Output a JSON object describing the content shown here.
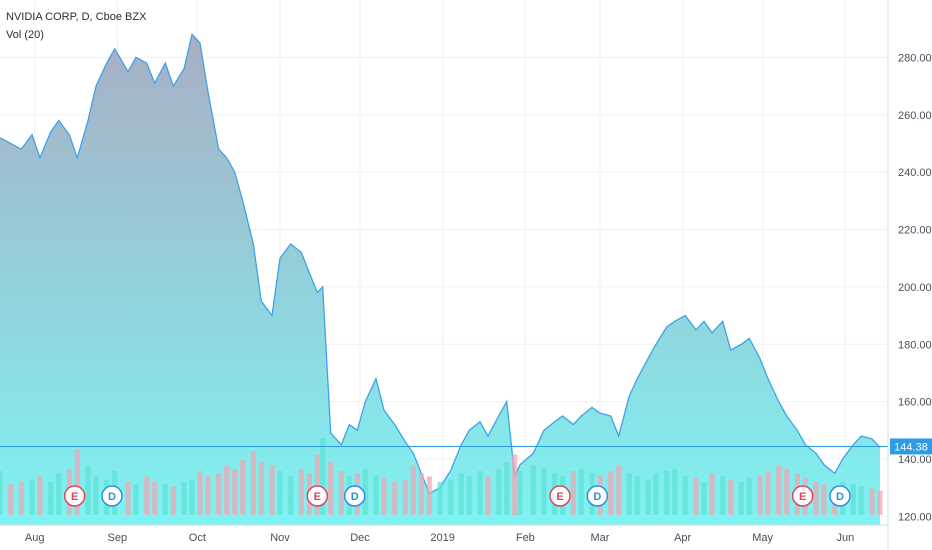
{
  "legend": {
    "symbol": "NVIDIA CORP, D, Cboe BZX",
    "indicator": "Vol (20)"
  },
  "colors": {
    "line": "#3fa2e6",
    "fill_top": "#a9aec4",
    "fill_bottom": "#7ef3f2",
    "volume_up": "#5fe1d6",
    "volume_down": "#f0a6b3",
    "grid": "#eef0f3",
    "price_line": "#2f9be6",
    "price_tag": "#2f9be6",
    "earnings": "#e0455a",
    "dividend": "#2f8fe0",
    "axis_text": "#4a4e59"
  },
  "chart_data": {
    "type": "area",
    "title": "NVIDIA CORP, D, Cboe BZX",
    "xlabel": "",
    "ylabel": "",
    "ylim": [
      117,
      300
    ],
    "x_ticks": [
      "Aug",
      "Sep",
      "Oct",
      "Nov",
      "Dec",
      "2019",
      "Feb",
      "Mar",
      "Apr",
      "May",
      "Jun"
    ],
    "y_ticks": [
      120,
      140,
      160,
      180,
      200,
      220,
      240,
      260,
      280
    ],
    "y_tick_labels": [
      "120.00",
      "140.00",
      "160.00",
      "180.00",
      "200.00",
      "220.00",
      "240.00",
      "260.00",
      "280.00"
    ],
    "last_price": 144.38,
    "last_price_label": "144.38",
    "grid": true,
    "series": [
      {
        "x": [
          "2018-07-19",
          "2018-07-23",
          "2018-07-27",
          "2018-07-31",
          "2018-08-03",
          "2018-08-07",
          "2018-08-10",
          "2018-08-14",
          "2018-08-17",
          "2018-08-21",
          "2018-08-24",
          "2018-08-28",
          "2018-08-31",
          "2018-09-05",
          "2018-09-08",
          "2018-09-12",
          "2018-09-15",
          "2018-09-19",
          "2018-09-22",
          "2018-09-26",
          "2018-09-29",
          "2018-10-02",
          "2018-10-05",
          "2018-10-09",
          "2018-10-12",
          "2018-10-15",
          "2018-10-18",
          "2018-10-22",
          "2018-10-25",
          "2018-10-29",
          "2018-11-01",
          "2018-11-05",
          "2018-11-09",
          "2018-11-12",
          "2018-11-15",
          "2018-11-17",
          "2018-11-20",
          "2018-11-24",
          "2018-11-27",
          "2018-11-30",
          "2018-12-03",
          "2018-12-07",
          "2018-12-10",
          "2018-12-14",
          "2018-12-18",
          "2018-12-21",
          "2018-12-24",
          "2018-12-27",
          "2018-12-31",
          "2019-01-04",
          "2019-01-08",
          "2019-01-11",
          "2019-01-15",
          "2019-01-18",
          "2019-01-22",
          "2019-01-25",
          "2019-01-28",
          "2019-01-30",
          "2019-02-04",
          "2019-02-08",
          "2019-02-12",
          "2019-02-15",
          "2019-02-19",
          "2019-02-22",
          "2019-02-26",
          "2019-03-01",
          "2019-03-05",
          "2019-03-08",
          "2019-03-12",
          "2019-03-15",
          "2019-03-19",
          "2019-03-22",
          "2019-03-26",
          "2019-03-29",
          "2019-04-02",
          "2019-04-06",
          "2019-04-09",
          "2019-04-12",
          "2019-04-16",
          "2019-04-19",
          "2019-04-23",
          "2019-04-26",
          "2019-04-30",
          "2019-05-03",
          "2019-05-07",
          "2019-05-10",
          "2019-05-14",
          "2019-05-17",
          "2019-05-21",
          "2019-05-24",
          "2019-05-28",
          "2019-05-31",
          "2019-06-04",
          "2019-06-07",
          "2019-06-11",
          "2019-06-14"
        ],
        "y": [
          252,
          250,
          248,
          253,
          245,
          254,
          258,
          253,
          245,
          258,
          270,
          278,
          283,
          275,
          280,
          278,
          271,
          278,
          270,
          276,
          288,
          285,
          268,
          248,
          245,
          240,
          230,
          215,
          195,
          190,
          210,
          215,
          212,
          205,
          198,
          200,
          149,
          145,
          152,
          150,
          160,
          168,
          157,
          152,
          146,
          142,
          135,
          128,
          130,
          136,
          145,
          150,
          153,
          148,
          155,
          160,
          134,
          138,
          142,
          150,
          153,
          155,
          152,
          155,
          158,
          156,
          155,
          148,
          162,
          168,
          175,
          180,
          186,
          188,
          190,
          185,
          188,
          184,
          188,
          178,
          180,
          182,
          175,
          168,
          160,
          155,
          150,
          145,
          142,
          138,
          135,
          140,
          145,
          148,
          147,
          144
        ]
      }
    ],
    "volume": [
      40,
      28,
      30,
      32,
      35,
      30,
      38,
      42,
      60,
      45,
      35,
      32,
      40,
      30,
      28,
      35,
      30,
      28,
      26,
      30,
      32,
      40,
      35,
      38,
      45,
      42,
      50,
      58,
      48,
      45,
      40,
      35,
      42,
      38,
      55,
      70,
      48,
      40,
      35,
      38,
      42,
      36,
      34,
      30,
      32,
      45,
      38,
      35,
      30,
      32,
      38,
      36,
      40,
      35,
      42,
      48,
      55,
      40,
      45,
      42,
      38,
      35,
      40,
      42,
      38,
      36,
      40,
      45,
      38,
      35,
      32,
      38,
      40,
      42,
      36,
      34,
      30,
      38,
      35,
      32,
      30,
      34,
      36,
      40,
      45,
      42,
      38,
      34,
      30,
      28,
      26,
      30,
      28,
      26,
      24,
      22
    ],
    "events": [
      {
        "label": "E",
        "type": "earnings",
        "x": "2018-08-16"
      },
      {
        "label": "D",
        "type": "dividend",
        "x": "2018-08-30"
      },
      {
        "label": "E",
        "type": "earnings",
        "x": "2018-11-15"
      },
      {
        "label": "D",
        "type": "dividend",
        "x": "2018-11-29"
      },
      {
        "label": "E",
        "type": "earnings",
        "x": "2019-02-14"
      },
      {
        "label": "D",
        "type": "dividend",
        "x": "2019-02-28"
      },
      {
        "label": "E",
        "type": "earnings",
        "x": "2019-05-16"
      },
      {
        "label": "D",
        "type": "dividend",
        "x": "2019-05-30"
      }
    ]
  }
}
